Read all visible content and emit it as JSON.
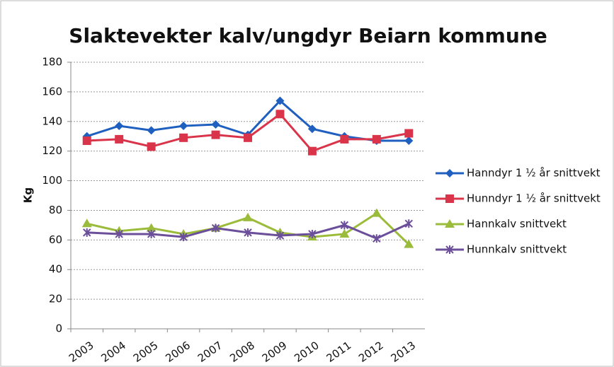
{
  "chart_data": {
    "type": "line",
    "title": "Slaktevekter kalv/ungdyr Beiarn kommune",
    "y_label": "Kg",
    "categories": [
      "2003",
      "2004",
      "2005",
      "2006",
      "2007",
      "2008",
      "2009",
      "2010",
      "2011",
      "2012",
      "2013"
    ],
    "series": [
      {
        "name": "Hanndyr 1 ½ år snittvekt",
        "color": "#1f5fbf",
        "marker": "diamond",
        "values": [
          130,
          137,
          134,
          137,
          138,
          131,
          154,
          135,
          130,
          127,
          127
        ]
      },
      {
        "name": "Hunndyr 1 ½ år snittvekt",
        "color": "#d9344a",
        "marker": "square",
        "values": [
          127,
          128,
          123,
          129,
          131,
          129,
          145,
          120,
          128,
          128,
          132
        ]
      },
      {
        "name": "Hannkalv snittvekt",
        "color": "#9bbb3b",
        "marker": "triangle",
        "values": [
          71,
          66,
          68,
          64,
          68,
          75,
          65,
          62,
          64,
          78,
          57
        ]
      },
      {
        "name": "Hunnkalv snittvekt",
        "color": "#6b4f9a",
        "marker": "x",
        "values": [
          65,
          64,
          64,
          62,
          68,
          65,
          63,
          64,
          70,
          61,
          71
        ]
      }
    ],
    "ylim": [
      0,
      180
    ],
    "yticks": [
      0,
      20,
      40,
      60,
      80,
      100,
      120,
      140,
      160,
      180
    ],
    "grid": true,
    "legend": "right"
  }
}
